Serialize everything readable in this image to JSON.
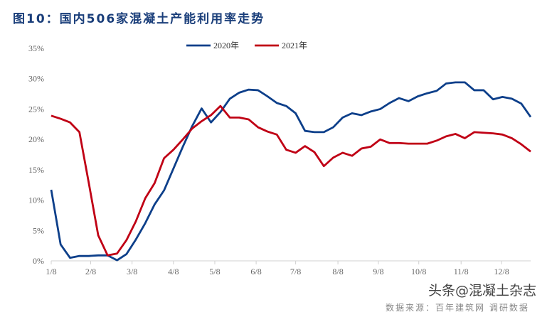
{
  "title": "图10：国内506家混凝土产能利用率走势",
  "source": "数据来源：百年建筑网 调研数据",
  "watermark": "头条@混凝土杂志",
  "chart_data": {
    "type": "line",
    "title": "图10：国内506家混凝土产能利用率走势",
    "xlabel": "",
    "ylabel": "",
    "ylim": [
      0,
      35
    ],
    "yticks": [
      "0%",
      "5%",
      "10%",
      "15%",
      "20%",
      "25%",
      "30%",
      "35%"
    ],
    "ytick_values": [
      0,
      5,
      10,
      15,
      20,
      25,
      30,
      35
    ],
    "xtick_labels": [
      "1/8",
      "2/8",
      "3/8",
      "4/8",
      "5/8",
      "6/8",
      "7/8",
      "8/8",
      "9/8",
      "10/8",
      "11/8",
      "12/8"
    ],
    "xtick_index": [
      0,
      4.2,
      8.6,
      13,
      17.4,
      21.8,
      26,
      30.5,
      34.8,
      39.1,
      43.6,
      47.9
    ],
    "x_count": 52,
    "legend_position": "top",
    "grid": false,
    "series": [
      {
        "name": "2020年",
        "color": "#0d3f8a",
        "values": [
          11.7,
          2.7,
          0.5,
          0.8,
          0.8,
          0.9,
          0.9,
          0.1,
          1.1,
          3.5,
          6.2,
          9.3,
          11.6,
          15.2,
          18.8,
          22.2,
          25.1,
          22.8,
          24.5,
          26.7,
          27.7,
          28.2,
          28.1,
          27.1,
          26.0,
          25.5,
          24.3,
          21.4,
          21.2,
          21.2,
          22.0,
          23.6,
          24.3,
          24.0,
          24.6,
          25.0,
          26.0,
          26.8,
          26.3,
          27.1,
          27.6,
          28.0,
          29.2,
          29.4,
          29.4,
          28.1,
          28.1,
          26.6,
          27.0,
          26.7,
          25.9,
          23.7
        ]
      },
      {
        "name": "2021年",
        "color": "#c00015",
        "values": [
          23.9,
          23.4,
          22.8,
          21.2,
          12.8,
          4.2,
          0.9,
          1.2,
          3.4,
          6.5,
          10.3,
          12.8,
          16.9,
          18.3,
          20.0,
          21.8,
          23.0,
          24.0,
          25.5,
          23.6,
          23.6,
          23.3,
          22.0,
          21.3,
          20.8,
          18.3,
          17.8,
          18.9,
          17.9,
          15.6,
          17.0,
          17.8,
          17.3,
          18.5,
          18.8,
          20.0,
          19.4,
          19.4,
          19.3,
          19.3,
          19.3,
          19.8,
          20.5,
          20.9,
          20.2,
          21.2,
          21.1,
          21.0,
          20.8,
          20.2,
          19.2,
          18.0
        ]
      }
    ]
  }
}
